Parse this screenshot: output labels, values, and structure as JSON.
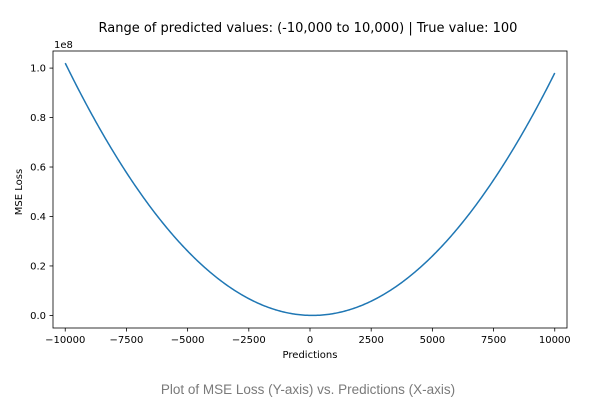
{
  "chart_data": {
    "type": "line",
    "title": "Range of predicted values: (-10,000 to 10,000) | True value: 100",
    "xlabel": "Predictions",
    "ylabel": "MSE Loss",
    "y_offset_label": "1e8",
    "xlim": [
      -10500,
      10500
    ],
    "ylim": [
      -0.0509,
      1.0691
    ],
    "y_scale": 100000000,
    "true_value": 100,
    "x_range": [
      -10000,
      10000
    ],
    "x_ticks": [
      {
        "value": -10000,
        "label": "−10000"
      },
      {
        "value": -7500,
        "label": "−7500"
      },
      {
        "value": -5000,
        "label": "−5000"
      },
      {
        "value": -2500,
        "label": "−2500"
      },
      {
        "value": 0,
        "label": "0"
      },
      {
        "value": 2500,
        "label": "2500"
      },
      {
        "value": 5000,
        "label": "5000"
      },
      {
        "value": 7500,
        "label": "7500"
      },
      {
        "value": 10000,
        "label": "10000"
      }
    ],
    "y_ticks": [
      {
        "value": 0.0,
        "label": "0.0"
      },
      {
        "value": 0.2,
        "label": "0.2"
      },
      {
        "value": 0.4,
        "label": "0.4"
      },
      {
        "value": 0.6,
        "label": "0.6"
      },
      {
        "value": 0.8,
        "label": "0.8"
      },
      {
        "value": 1.0,
        "label": "1.0"
      }
    ],
    "series": [
      {
        "color": "#1f77b4",
        "x": [
          -10000,
          -9000,
          -8000,
          -7000,
          -6000,
          -5000,
          -4000,
          -3000,
          -2000,
          -1000,
          0,
          100,
          1000,
          2000,
          3000,
          4000,
          5000,
          6000,
          7000,
          8000,
          9000,
          10000
        ],
        "y": [
          102010000,
          82810000,
          65610000,
          50410000,
          37210000,
          26010000,
          16810000,
          9610000,
          4410000,
          1210000,
          10000,
          0,
          810000,
          3610000,
          8410000,
          15210000,
          24010000,
          34810000,
          47610000,
          62410000,
          79210000,
          98010000
        ]
      }
    ],
    "grid": false,
    "legend": "none"
  },
  "caption": "Plot of MSE Loss (Y-axis) vs. Predictions (X-axis)"
}
